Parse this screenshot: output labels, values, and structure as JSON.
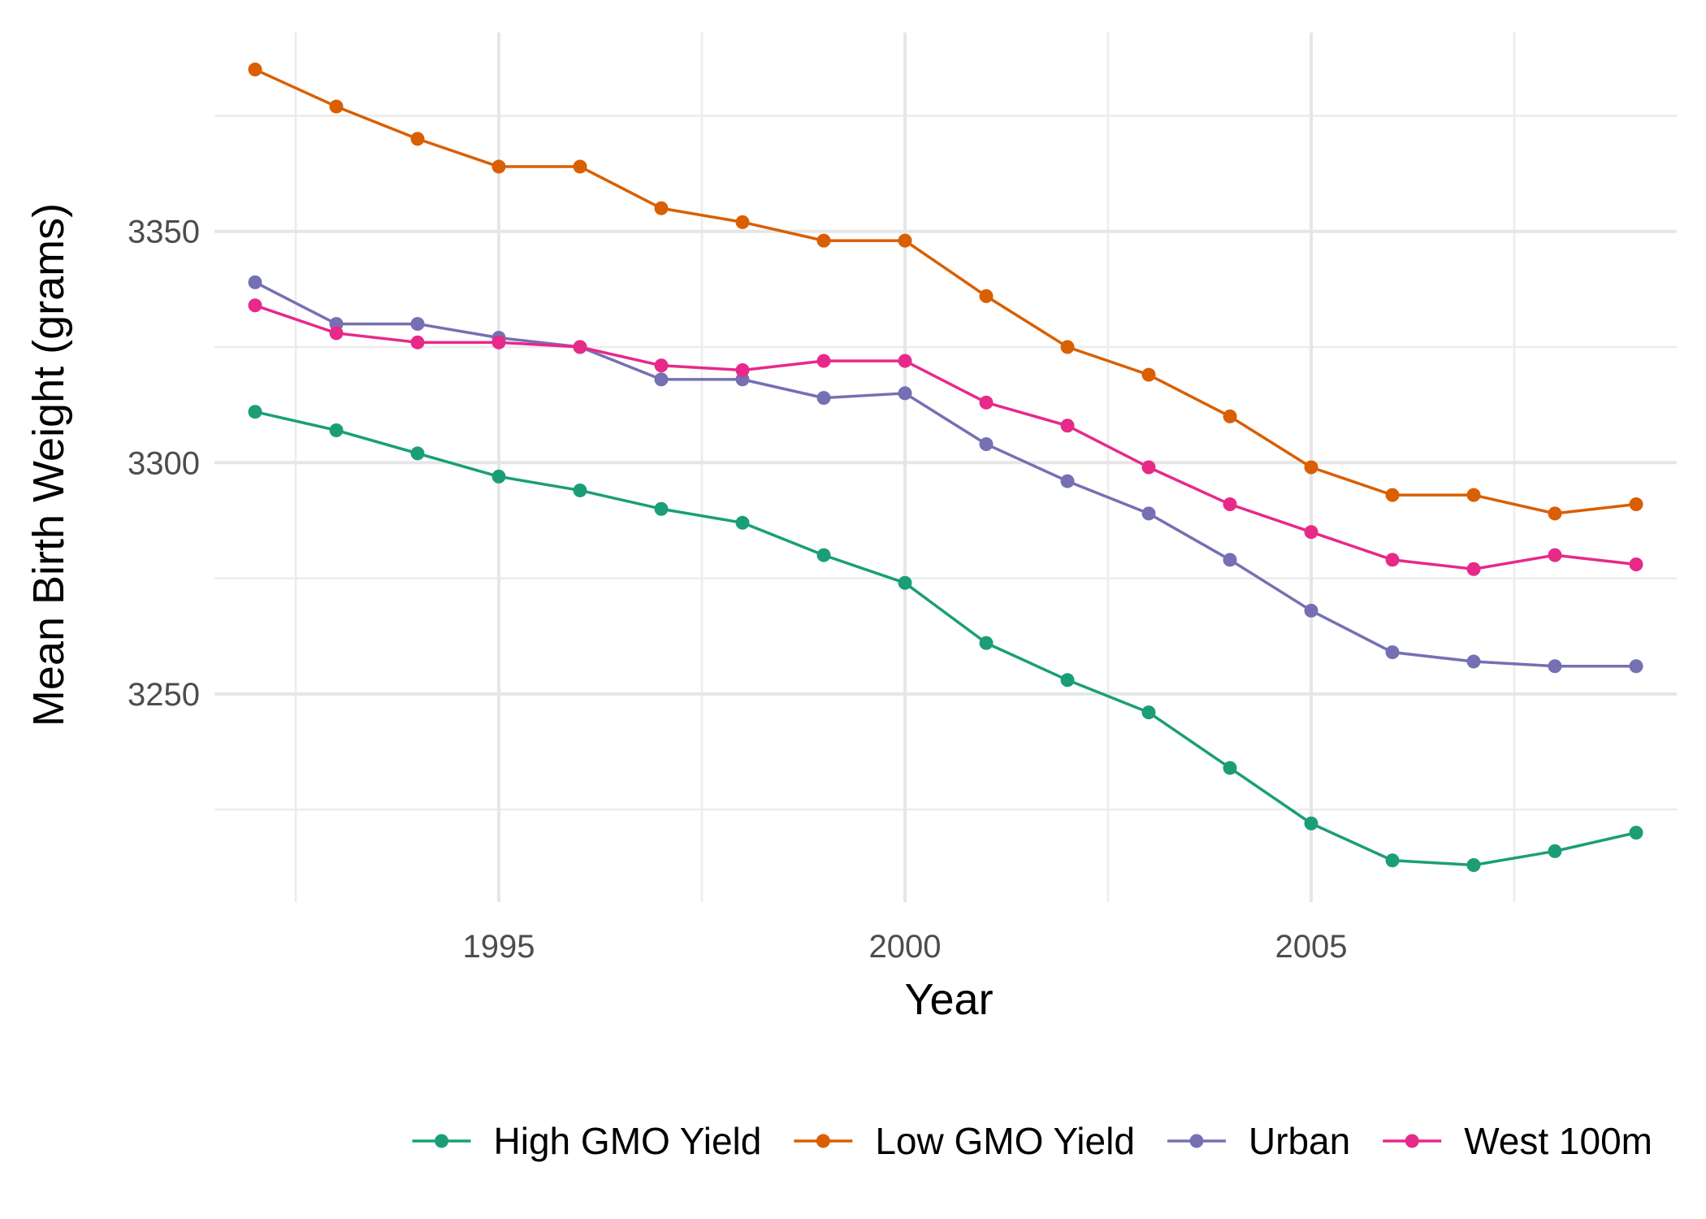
{
  "chart_data": {
    "type": "line",
    "title": "",
    "xlabel": "Year",
    "ylabel": "Mean Birth Weight (grams)",
    "xlim": [
      1991.5,
      2009.5
    ],
    "ylim": [
      3205,
      3393
    ],
    "x_major_ticks": [
      1995,
      2000,
      2005
    ],
    "x_minor_ticks": [
      1992.5,
      1997.5,
      2002.5,
      2007.5
    ],
    "y_major_ticks": [
      3250,
      3300,
      3350
    ],
    "y_minor_ticks": [
      3225,
      3275,
      3325,
      3375
    ],
    "tick_labels": {
      "x": [
        "1995",
        "2000",
        "2005"
      ],
      "y": [
        "3250",
        "3300",
        "3350"
      ]
    },
    "grid": true,
    "legend_position": "bottom",
    "x": [
      1992,
      1993,
      1994,
      1995,
      1996,
      1997,
      1998,
      1999,
      2000,
      2001,
      2002,
      2003,
      2004,
      2005,
      2006,
      2007,
      2008,
      2009
    ],
    "series": [
      {
        "name": "High GMO Yield",
        "color": "#1b9e77",
        "values": [
          3311,
          3307,
          3302,
          3297,
          3294,
          3290,
          3287,
          3280,
          3274,
          3261,
          3253,
          3246,
          3234,
          3222,
          3214,
          3213,
          3216,
          3220
        ]
      },
      {
        "name": "Low GMO Yield",
        "color": "#d95f02",
        "values": [
          3385,
          3377,
          3370,
          3364,
          3364,
          3355,
          3352,
          3348,
          3348,
          3336,
          3325,
          3319,
          3310,
          3299,
          3293,
          3293,
          3289,
          3291
        ]
      },
      {
        "name": "Urban",
        "color": "#7570b3",
        "values": [
          3339,
          3330,
          3330,
          3327,
          3325,
          3318,
          3318,
          3314,
          3315,
          3304,
          3296,
          3289,
          3279,
          3268,
          3259,
          3257,
          3256,
          3256
        ]
      },
      {
        "name": "West 100m",
        "color": "#e7298a",
        "values": [
          3334,
          3328,
          3326,
          3326,
          3325,
          3321,
          3320,
          3322,
          3322,
          3313,
          3308,
          3299,
          3291,
          3285,
          3279,
          3277,
          3280,
          3278
        ]
      }
    ]
  }
}
